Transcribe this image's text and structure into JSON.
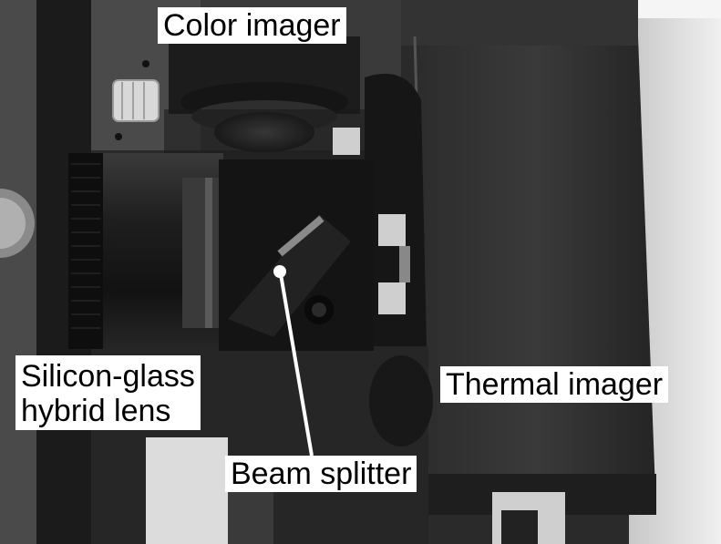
{
  "figure": {
    "labels": {
      "color_imager": "Color imager",
      "lens_line1": "Silicon-glass",
      "lens_line2": "hybrid lens",
      "thermal_imager": "Thermal imager",
      "beam_splitter": "Beam splitter"
    },
    "colors": {
      "label_background": "#ffffff",
      "label_text": "#000000",
      "pointer": "#ffffff"
    }
  }
}
